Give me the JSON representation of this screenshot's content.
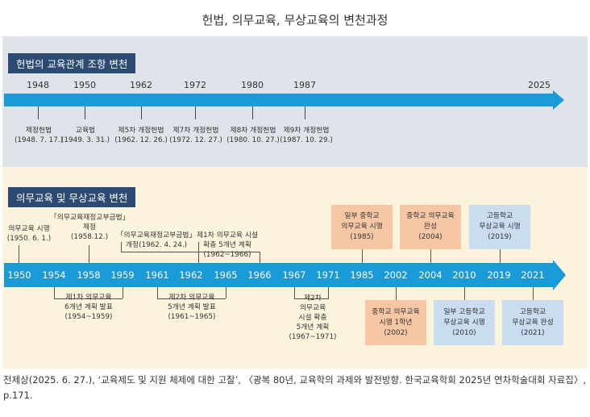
{
  "title": "헌법, 의무교육, 무상교육의 변천과정",
  "section1": {
    "header": "헌법의 교육관계 조항 변천",
    "years": [
      "1948",
      "1950",
      "1962",
      "1972",
      "1980",
      "1987",
      "2025"
    ],
    "events": [
      {
        "label": "제정헌법",
        "date": "(1948. 7. 17.)"
      },
      {
        "label": "교육법",
        "date": "(1949. 3. 31.)"
      },
      {
        "label": "제5차 개정헌법",
        "date": "(1962. 12. 26.)"
      },
      {
        "label": "제7차 개정헌법",
        "date": "(1972. 12. 27.)"
      },
      {
        "label": "제8차 개정헌법",
        "date": "(1980. 10. 27.)"
      },
      {
        "label": "제9차 개정헌법",
        "date": "(1987. 10. 29.)"
      }
    ]
  },
  "section2": {
    "header": "의무교육 및 무상교육 변천",
    "years": [
      "1950",
      "1954",
      "1958",
      "1959",
      "1961",
      "1962",
      "1965",
      "1966",
      "1967",
      "1971",
      "1985",
      "2002",
      "2004",
      "2010",
      "2019",
      "2021"
    ],
    "top_events": [
      {
        "l1": "의무교육 시행",
        "l2": "(1950. 6. 1.)"
      },
      {
        "l1": "「의무교육재정교부금법」",
        "l2": "제정",
        "l3": "(1958.12.)"
      },
      {
        "l1": "「의무교육재정교부금법」",
        "l2": "개정(1962. 4. 24.)"
      },
      {
        "l1": "제1차 의무교육 시설",
        "l2": "확충 5개년 계획",
        "l3": "(1962~1966)"
      }
    ],
    "bottom_events": [
      {
        "l1": "제1차 의무교육",
        "l2": "6개년 계획 발표",
        "l3": "(1954~1959)"
      },
      {
        "l1": "제2차 의무교육",
        "l2": "5개년 계획 발표",
        "l3": "(1961~1965)"
      },
      {
        "l1": "제2차",
        "l2": "의무교육",
        "l3": "시설 확충",
        "l4": "5개년 계획",
        "l5": "(1967~1971)"
      }
    ],
    "boxes_top": [
      {
        "l1": "일부 중학교",
        "l2": "의무교육 시행",
        "l3": "(1985)",
        "color": "#f7c7a5"
      },
      {
        "l1": "중학교 의무교육",
        "l2": "완성",
        "l3": "(2004)",
        "color": "#f7c7a5"
      },
      {
        "l1": "고등학교",
        "l2": "무상교육 시행",
        "l3": "(2019)",
        "color": "#c9dcf0"
      }
    ],
    "boxes_bottom": [
      {
        "l1": "중학교 의무교육",
        "l2": "시행 1학년",
        "l3": "(2002)",
        "color": "#f7c7a5"
      },
      {
        "l1": "일부 고등학교",
        "l2": "무상교육 시행",
        "l3": "(2010)",
        "color": "#c9dcf0"
      },
      {
        "l1": "고등학교",
        "l2": "무상교육 완성",
        "l3": "(2021)",
        "color": "#c9dcf0"
      }
    ]
  },
  "source": "전제상(2025. 6. 27.), ‘교육제도 및 지원 체제에 대한 고찰’, 〈광복 80년, 교육학의 과제와 발전방향. 한국교육학회 2025년 연차학술대회 자료집〉, p.171.",
  "colors": {
    "header_bg": "#2d4a73",
    "arrow": "#1a9ad6",
    "panel1_bg": "#dfe3ea",
    "panel2_bg": "#fbf3dc",
    "orange_box": "#f7c7a5",
    "blue_box": "#c9dcf0"
  }
}
